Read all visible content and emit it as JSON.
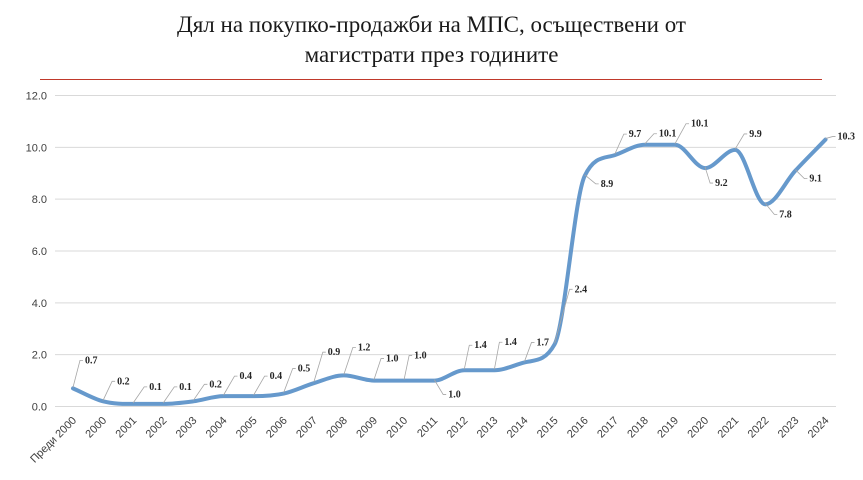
{
  "chart_data": {
    "type": "line",
    "title_lines": [
      "Дял на покупко-продажби на МПС, осъществени от",
      "магистрати през годините"
    ],
    "xlabel": "",
    "ylabel": "",
    "ylim": [
      0,
      12
    ],
    "y_ticks": [
      "0.0",
      "2.0",
      "4.0",
      "6.0",
      "8.0",
      "10.0",
      "12.0"
    ],
    "grid": true,
    "legend": "none",
    "line_color": "#6699cc",
    "title_rule_color": "#c0392b",
    "categories": [
      "Преди 2000",
      "2000",
      "2001",
      "2002",
      "2003",
      "2004",
      "2005",
      "2006",
      "2007",
      "2008",
      "2009",
      "2010",
      "2011",
      "2012",
      "2013",
      "2014",
      "2015",
      "2016",
      "2017",
      "2018",
      "2019",
      "2020",
      "2021",
      "2022",
      "2023",
      "2024"
    ],
    "values": [
      0.7,
      0.2,
      0.1,
      0.1,
      0.2,
      0.4,
      0.4,
      0.5,
      0.9,
      1.2,
      1.0,
      1.0,
      1.0,
      1.4,
      1.4,
      1.7,
      2.4,
      8.9,
      9.7,
      10.1,
      10.1,
      9.2,
      9.9,
      7.8,
      9.1,
      10.3
    ],
    "value_labels": [
      "0.7",
      "0.2",
      "0.1",
      "0.1",
      "0.2",
      "0.4",
      "0.4",
      "0.5",
      "0.9",
      "1.2",
      "1.0",
      "1.0",
      "1.0",
      "1.4",
      "1.4",
      "1.7",
      "2.4",
      "8.9",
      "9.7",
      "10.1",
      "10.1",
      "9.2",
      "9.9",
      "7.8",
      "9.1",
      "10.3"
    ]
  }
}
